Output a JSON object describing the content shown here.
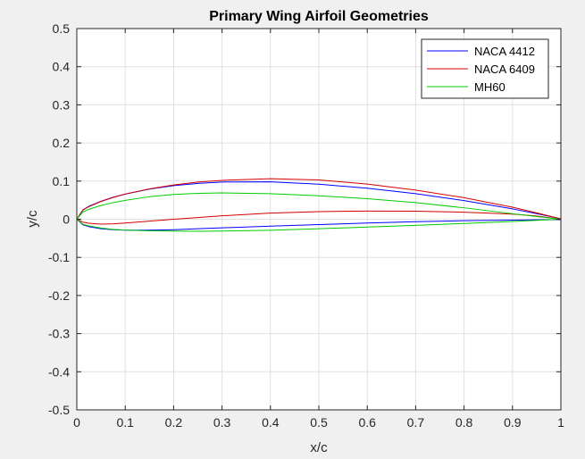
{
  "chart_data": {
    "type": "line",
    "title": "Primary Wing Airfoil Geometries",
    "xlabel": "x/c",
    "ylabel": "y/c",
    "xlim": [
      0,
      1
    ],
    "ylim": [
      -0.5,
      0.5
    ],
    "xticks": [
      0,
      0.1,
      0.2,
      0.3,
      0.4,
      0.5,
      0.6,
      0.7,
      0.8,
      0.9,
      1
    ],
    "yticks": [
      -0.5,
      -0.4,
      -0.3,
      -0.2,
      -0.1,
      0,
      0.1,
      0.2,
      0.3,
      0.4,
      0.5
    ],
    "xtick_labels": [
      "0",
      "0.1",
      "0.2",
      "0.3",
      "0.4",
      "0.5",
      "0.6",
      "0.7",
      "0.8",
      "0.9",
      "1"
    ],
    "ytick_labels": [
      "-0.5",
      "-0.4",
      "-0.3",
      "-0.2",
      "-0.1",
      "0",
      "0.1",
      "0.2",
      "0.3",
      "0.4",
      "0.5"
    ],
    "grid": true,
    "legend_position": "top-right",
    "series": [
      {
        "name": "NACA 4412",
        "color": "#0000ff",
        "x": [
          1.0,
          0.95,
          0.9,
          0.8,
          0.7,
          0.6,
          0.5,
          0.4,
          0.3,
          0.25,
          0.2,
          0.15,
          0.1,
          0.075,
          0.05,
          0.025,
          0.0125,
          0.0,
          0.0125,
          0.025,
          0.05,
          0.075,
          0.1,
          0.15,
          0.2,
          0.25,
          0.3,
          0.4,
          0.5,
          0.6,
          0.7,
          0.8,
          0.9,
          0.95,
          1.0
        ],
        "y": [
          0.0013,
          0.0147,
          0.0271,
          0.0489,
          0.0669,
          0.0814,
          0.0919,
          0.098,
          0.0976,
          0.0941,
          0.088,
          0.0789,
          0.0659,
          0.0576,
          0.0473,
          0.0339,
          0.0244,
          0.0,
          -0.0143,
          -0.0195,
          -0.0249,
          -0.0274,
          -0.0286,
          -0.0288,
          -0.0274,
          -0.025,
          -0.0226,
          -0.018,
          -0.014,
          -0.01,
          -0.0065,
          -0.0039,
          -0.0022,
          -0.0016,
          -0.0013
        ]
      },
      {
        "name": "NACA 6409",
        "color": "#d40000",
        "x": [
          1.0,
          0.95,
          0.9,
          0.8,
          0.7,
          0.6,
          0.5,
          0.4,
          0.3,
          0.25,
          0.2,
          0.15,
          0.1,
          0.075,
          0.05,
          0.025,
          0.0125,
          0.0,
          0.0125,
          0.025,
          0.05,
          0.075,
          0.1,
          0.15,
          0.2,
          0.25,
          0.3,
          0.4,
          0.5,
          0.6,
          0.7,
          0.8,
          0.9,
          0.95,
          1.0
        ],
        "y": [
          0.001,
          0.0168,
          0.0316,
          0.0565,
          0.0765,
          0.0921,
          0.1031,
          0.1063,
          0.102,
          0.0975,
          0.09,
          0.0795,
          0.066,
          0.057,
          0.0465,
          0.033,
          0.024,
          0.0,
          -0.0075,
          -0.0105,
          -0.013,
          -0.012,
          -0.01,
          -0.005,
          0.0,
          0.0045,
          0.009,
          0.016,
          0.02,
          0.0215,
          0.021,
          0.0185,
          0.0135,
          0.0085,
          0.0
        ]
      },
      {
        "name": "MH60",
        "color": "#00cc00",
        "x": [
          1.0,
          0.95,
          0.9,
          0.8,
          0.7,
          0.6,
          0.5,
          0.4,
          0.3,
          0.25,
          0.2,
          0.15,
          0.1,
          0.075,
          0.05,
          0.025,
          0.0125,
          0.0,
          0.0125,
          0.025,
          0.05,
          0.075,
          0.1,
          0.15,
          0.2,
          0.25,
          0.3,
          0.4,
          0.5,
          0.6,
          0.7,
          0.8,
          0.9,
          0.95,
          1.0
        ],
        "y": [
          0.0,
          0.007,
          0.0145,
          0.03,
          0.0435,
          0.054,
          0.0615,
          0.067,
          0.069,
          0.068,
          0.065,
          0.059,
          0.0495,
          0.0435,
          0.036,
          0.026,
          0.019,
          0.0,
          -0.013,
          -0.0175,
          -0.023,
          -0.0265,
          -0.0285,
          -0.0305,
          -0.031,
          -0.0315,
          -0.031,
          -0.029,
          -0.025,
          -0.0205,
          -0.016,
          -0.011,
          -0.006,
          -0.003,
          0.0
        ]
      }
    ]
  }
}
